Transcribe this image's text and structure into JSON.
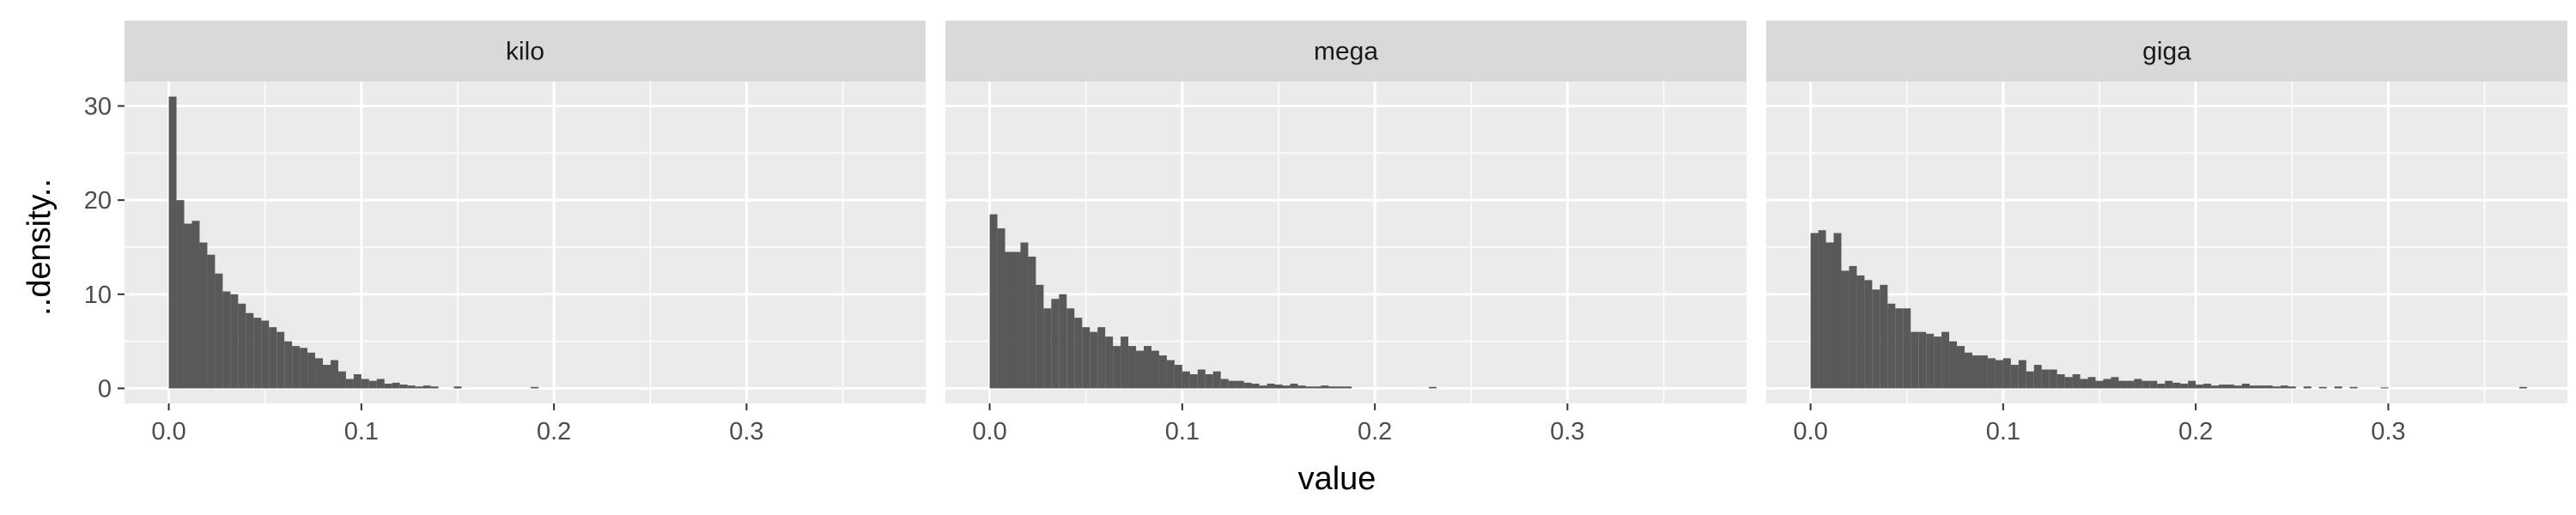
{
  "chart_data": {
    "type": "bar",
    "subtype": "faceted-histogram",
    "xlabel": "value",
    "ylabel": "..density..",
    "xlim": [
      -0.023,
      0.393
    ],
    "ylim": [
      -1.6,
      32.6
    ],
    "x_ticks": [
      0.0,
      0.1,
      0.2,
      0.3
    ],
    "x_tick_labels": [
      "0.0",
      "0.1",
      "0.2",
      "0.3"
    ],
    "y_ticks": [
      0,
      10,
      20,
      30
    ],
    "y_tick_labels": [
      "0",
      "10",
      "20",
      "30"
    ],
    "grid": true,
    "bin_width": 0.004,
    "bin_start": 0.0,
    "colors": {
      "bar": "#595959",
      "panel": "#ebebeb",
      "strip": "#d9d9d9",
      "grid": "#ffffff"
    },
    "facets": [
      {
        "name": "kilo",
        "values": [
          31.0,
          20.0,
          17.5,
          17.8,
          15.5,
          14.2,
          12.2,
          10.3,
          10.0,
          9.0,
          8.0,
          7.5,
          7.2,
          6.5,
          6.0,
          5.0,
          4.5,
          4.3,
          3.8,
          3.2,
          2.5,
          3.0,
          1.8,
          1.0,
          1.5,
          1.0,
          0.8,
          1.0,
          0.5,
          0.6,
          0.4,
          0.3,
          0.2,
          0.3,
          0.2,
          0,
          0,
          0.2,
          0,
          0,
          0,
          0,
          0,
          0,
          0,
          0,
          0,
          0.15
        ]
      },
      {
        "name": "mega",
        "values": [
          18.5,
          17.0,
          14.5,
          14.5,
          15.5,
          14.0,
          11.0,
          8.5,
          9.5,
          10.0,
          8.5,
          7.5,
          6.5,
          6.0,
          6.5,
          5.5,
          4.5,
          5.5,
          4.5,
          4.0,
          4.5,
          4.0,
          3.5,
          3.0,
          2.5,
          1.8,
          1.5,
          2.0,
          1.5,
          1.8,
          1.0,
          0.8,
          0.8,
          0.6,
          0.5,
          0.3,
          0.5,
          0.4,
          0.3,
          0.5,
          0.3,
          0.2,
          0.2,
          0.3,
          0.2,
          0.2,
          0.2,
          0,
          0,
          0,
          0,
          0,
          0,
          0,
          0,
          0,
          0,
          0.15
        ]
      },
      {
        "name": "giga",
        "values": [
          16.5,
          16.8,
          15.5,
          16.5,
          12.5,
          13.0,
          12.0,
          11.5,
          10.5,
          11.0,
          9.0,
          8.5,
          8.5,
          6.0,
          6.0,
          5.8,
          5.5,
          6.0,
          5.0,
          4.5,
          3.8,
          3.5,
          3.5,
          3.2,
          3.0,
          3.2,
          2.5,
          3.0,
          1.8,
          2.5,
          2.0,
          2.0,
          1.5,
          1.2,
          1.5,
          1.0,
          1.2,
          0.8,
          1.0,
          1.2,
          0.8,
          0.8,
          1.0,
          0.8,
          0.8,
          0.5,
          0.8,
          0.6,
          0.5,
          0.8,
          0.4,
          0.5,
          0.3,
          0.4,
          0.4,
          0.3,
          0.5,
          0.3,
          0.3,
          0.3,
          0.2,
          0.3,
          0.2,
          0,
          0.2,
          0,
          0.15,
          0,
          0.2,
          0,
          0.15,
          0,
          0,
          0,
          0.1,
          0,
          0,
          0,
          0,
          0,
          0,
          0,
          0,
          0,
          0,
          0,
          0,
          0,
          0,
          0,
          0,
          0,
          0.15
        ]
      }
    ]
  }
}
